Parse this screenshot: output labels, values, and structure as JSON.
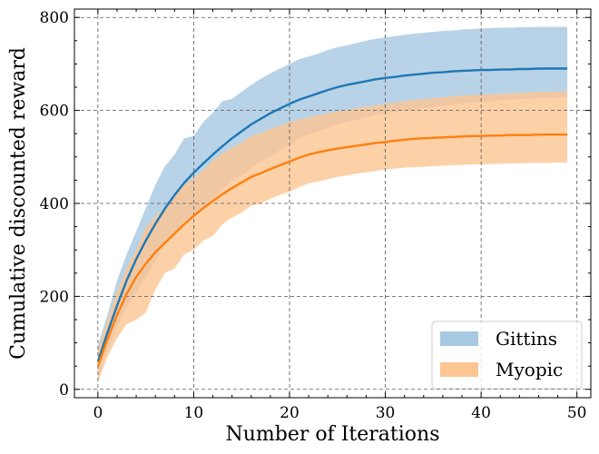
{
  "chart_data": {
    "type": "line",
    "xlabel": "Number of Iterations",
    "ylabel": "Cumulative discounted reward",
    "xlim": [
      -2.45,
      51.45
    ],
    "ylim": [
      -18,
      818
    ],
    "xticks": [
      0,
      10,
      20,
      30,
      40,
      50
    ],
    "yticks": [
      0,
      200,
      400,
      600,
      800
    ],
    "grid": true,
    "legend_position": "bottom-right",
    "x": [
      0,
      1,
      2,
      3,
      4,
      5,
      6,
      7,
      8,
      9,
      10,
      11,
      12,
      13,
      14,
      15,
      16,
      17,
      18,
      19,
      20,
      21,
      22,
      23,
      24,
      25,
      26,
      27,
      28,
      29,
      30,
      31,
      32,
      33,
      34,
      35,
      36,
      37,
      38,
      39,
      40,
      41,
      42,
      43,
      44,
      45,
      46,
      47,
      48,
      49
    ],
    "series": [
      {
        "name": "Gittins",
        "color": "#1f77b4",
        "band_color": "#a6c8e1",
        "mean": [
          60,
          122,
          180,
          234,
          280,
          320,
          356,
          389,
          418,
          444,
          466,
          486,
          505,
          523,
          540,
          555,
          570,
          582,
          594,
          604,
          614,
          623,
          630,
          637,
          644,
          650,
          655,
          659,
          663,
          667,
          670,
          672,
          675,
          677,
          679,
          681,
          682,
          684,
          685,
          686,
          687,
          687,
          688,
          688,
          689,
          689,
          690,
          690,
          690,
          690
        ],
        "lower": [
          25,
          85,
          135,
          175,
          210,
          240,
          275,
          315,
          330,
          360,
          375,
          395,
          410,
          430,
          448,
          460,
          475,
          490,
          500,
          515,
          525,
          540,
          548,
          555,
          562,
          570,
          575,
          580,
          585,
          590,
          593,
          597,
          600,
          602,
          605,
          607,
          610,
          612,
          615,
          617,
          618,
          620,
          622,
          623,
          624,
          625,
          626,
          627,
          628,
          628
        ],
        "upper": [
          95,
          160,
          235,
          290,
          340,
          390,
          440,
          480,
          505,
          540,
          545,
          575,
          595,
          620,
          625,
          640,
          655,
          668,
          680,
          690,
          700,
          710,
          716,
          722,
          730,
          736,
          740,
          745,
          750,
          754,
          757,
          760,
          763,
          765,
          767,
          769,
          771,
          772,
          774,
          775,
          776,
          777,
          778,
          778,
          779,
          779,
          780,
          780,
          780,
          780
        ]
      },
      {
        "name": "Myopic",
        "color": "#ff7f0e",
        "band_color": "#fdc592",
        "mean": [
          50,
          108,
          160,
          205,
          242,
          270,
          295,
          315,
          335,
          355,
          373,
          390,
          405,
          420,
          433,
          445,
          457,
          465,
          474,
          482,
          490,
          498,
          505,
          510,
          514,
          518,
          521,
          524,
          527,
          530,
          532,
          535,
          537,
          539,
          540,
          541,
          542,
          543,
          544,
          545,
          545,
          546,
          546,
          547,
          547,
          547,
          548,
          548,
          548,
          548
        ],
        "lower": [
          15,
          70,
          110,
          140,
          150,
          165,
          215,
          250,
          260,
          290,
          300,
          320,
          330,
          355,
          370,
          380,
          395,
          400,
          410,
          418,
          425,
          435,
          443,
          447,
          452,
          457,
          460,
          464,
          467,
          470,
          473,
          475,
          477,
          478,
          479,
          480,
          481,
          482,
          483,
          484,
          484,
          485,
          485,
          486,
          486,
          487,
          487,
          487,
          488,
          488
        ],
        "upper": [
          85,
          148,
          210,
          262,
          300,
          348,
          372,
          392,
          418,
          440,
          455,
          472,
          492,
          508,
          520,
          530,
          545,
          552,
          560,
          567,
          575,
          580,
          585,
          590,
          594,
          598,
          601,
          605,
          608,
          611,
          614,
          617,
          620,
          622,
          624,
          626,
          628,
          630,
          632,
          633,
          634,
          635,
          636,
          637,
          638,
          639,
          640,
          640,
          641,
          641
        ]
      }
    ]
  }
}
